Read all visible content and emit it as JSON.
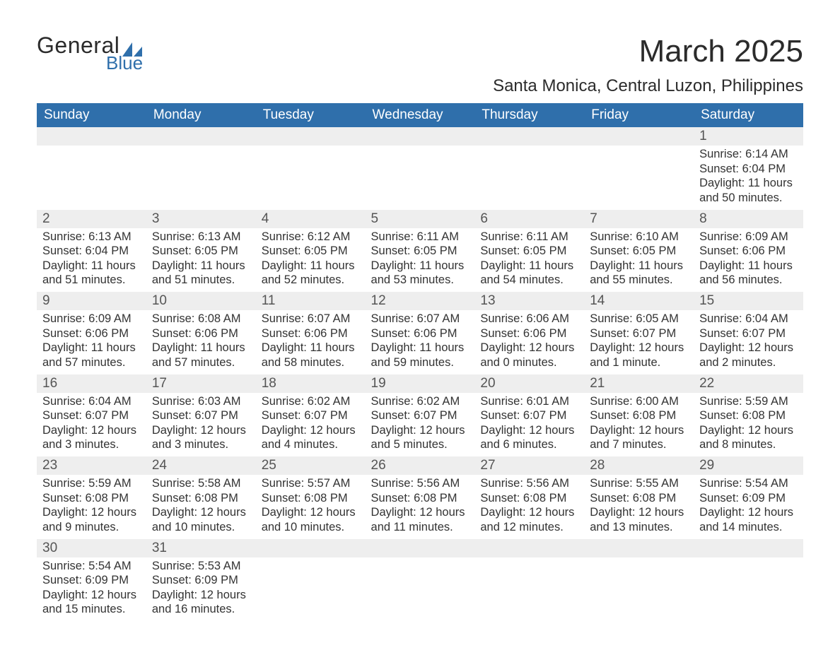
{
  "brand": {
    "word1": "General",
    "word2": "Blue",
    "accent_color": "#2f6fab",
    "text_color": "#2b2b2b"
  },
  "title": {
    "month": "March 2025",
    "location": "Santa Monica, Central Luzon, Philippines"
  },
  "style": {
    "header_bg": "#2f6fab",
    "header_fg": "#ffffff",
    "row_divider": "#2f6fab",
    "daynum_bg": "#eeeeee",
    "body_fg": "#333333",
    "title_fontsize": 44,
    "location_fontsize": 24,
    "header_fontsize": 19,
    "daynum_fontsize": 19,
    "detail_fontsize": 16.5
  },
  "columns": [
    "Sunday",
    "Monday",
    "Tuesday",
    "Wednesday",
    "Thursday",
    "Friday",
    "Saturday"
  ],
  "weeks": [
    [
      null,
      null,
      null,
      null,
      null,
      null,
      {
        "n": "1",
        "sr": "Sunrise: 6:14 AM",
        "ss": "Sunset: 6:04 PM",
        "d1": "Daylight: 11 hours",
        "d2": "and 50 minutes."
      }
    ],
    [
      {
        "n": "2",
        "sr": "Sunrise: 6:13 AM",
        "ss": "Sunset: 6:04 PM",
        "d1": "Daylight: 11 hours",
        "d2": "and 51 minutes."
      },
      {
        "n": "3",
        "sr": "Sunrise: 6:13 AM",
        "ss": "Sunset: 6:05 PM",
        "d1": "Daylight: 11 hours",
        "d2": "and 51 minutes."
      },
      {
        "n": "4",
        "sr": "Sunrise: 6:12 AM",
        "ss": "Sunset: 6:05 PM",
        "d1": "Daylight: 11 hours",
        "d2": "and 52 minutes."
      },
      {
        "n": "5",
        "sr": "Sunrise: 6:11 AM",
        "ss": "Sunset: 6:05 PM",
        "d1": "Daylight: 11 hours",
        "d2": "and 53 minutes."
      },
      {
        "n": "6",
        "sr": "Sunrise: 6:11 AM",
        "ss": "Sunset: 6:05 PM",
        "d1": "Daylight: 11 hours",
        "d2": "and 54 minutes."
      },
      {
        "n": "7",
        "sr": "Sunrise: 6:10 AM",
        "ss": "Sunset: 6:05 PM",
        "d1": "Daylight: 11 hours",
        "d2": "and 55 minutes."
      },
      {
        "n": "8",
        "sr": "Sunrise: 6:09 AM",
        "ss": "Sunset: 6:06 PM",
        "d1": "Daylight: 11 hours",
        "d2": "and 56 minutes."
      }
    ],
    [
      {
        "n": "9",
        "sr": "Sunrise: 6:09 AM",
        "ss": "Sunset: 6:06 PM",
        "d1": "Daylight: 11 hours",
        "d2": "and 57 minutes."
      },
      {
        "n": "10",
        "sr": "Sunrise: 6:08 AM",
        "ss": "Sunset: 6:06 PM",
        "d1": "Daylight: 11 hours",
        "d2": "and 57 minutes."
      },
      {
        "n": "11",
        "sr": "Sunrise: 6:07 AM",
        "ss": "Sunset: 6:06 PM",
        "d1": "Daylight: 11 hours",
        "d2": "and 58 minutes."
      },
      {
        "n": "12",
        "sr": "Sunrise: 6:07 AM",
        "ss": "Sunset: 6:06 PM",
        "d1": "Daylight: 11 hours",
        "d2": "and 59 minutes."
      },
      {
        "n": "13",
        "sr": "Sunrise: 6:06 AM",
        "ss": "Sunset: 6:06 PM",
        "d1": "Daylight: 12 hours",
        "d2": "and 0 minutes."
      },
      {
        "n": "14",
        "sr": "Sunrise: 6:05 AM",
        "ss": "Sunset: 6:07 PM",
        "d1": "Daylight: 12 hours",
        "d2": "and 1 minute."
      },
      {
        "n": "15",
        "sr": "Sunrise: 6:04 AM",
        "ss": "Sunset: 6:07 PM",
        "d1": "Daylight: 12 hours",
        "d2": "and 2 minutes."
      }
    ],
    [
      {
        "n": "16",
        "sr": "Sunrise: 6:04 AM",
        "ss": "Sunset: 6:07 PM",
        "d1": "Daylight: 12 hours",
        "d2": "and 3 minutes."
      },
      {
        "n": "17",
        "sr": "Sunrise: 6:03 AM",
        "ss": "Sunset: 6:07 PM",
        "d1": "Daylight: 12 hours",
        "d2": "and 3 minutes."
      },
      {
        "n": "18",
        "sr": "Sunrise: 6:02 AM",
        "ss": "Sunset: 6:07 PM",
        "d1": "Daylight: 12 hours",
        "d2": "and 4 minutes."
      },
      {
        "n": "19",
        "sr": "Sunrise: 6:02 AM",
        "ss": "Sunset: 6:07 PM",
        "d1": "Daylight: 12 hours",
        "d2": "and 5 minutes."
      },
      {
        "n": "20",
        "sr": "Sunrise: 6:01 AM",
        "ss": "Sunset: 6:07 PM",
        "d1": "Daylight: 12 hours",
        "d2": "and 6 minutes."
      },
      {
        "n": "21",
        "sr": "Sunrise: 6:00 AM",
        "ss": "Sunset: 6:08 PM",
        "d1": "Daylight: 12 hours",
        "d2": "and 7 minutes."
      },
      {
        "n": "22",
        "sr": "Sunrise: 5:59 AM",
        "ss": "Sunset: 6:08 PM",
        "d1": "Daylight: 12 hours",
        "d2": "and 8 minutes."
      }
    ],
    [
      {
        "n": "23",
        "sr": "Sunrise: 5:59 AM",
        "ss": "Sunset: 6:08 PM",
        "d1": "Daylight: 12 hours",
        "d2": "and 9 minutes."
      },
      {
        "n": "24",
        "sr": "Sunrise: 5:58 AM",
        "ss": "Sunset: 6:08 PM",
        "d1": "Daylight: 12 hours",
        "d2": "and 10 minutes."
      },
      {
        "n": "25",
        "sr": "Sunrise: 5:57 AM",
        "ss": "Sunset: 6:08 PM",
        "d1": "Daylight: 12 hours",
        "d2": "and 10 minutes."
      },
      {
        "n": "26",
        "sr": "Sunrise: 5:56 AM",
        "ss": "Sunset: 6:08 PM",
        "d1": "Daylight: 12 hours",
        "d2": "and 11 minutes."
      },
      {
        "n": "27",
        "sr": "Sunrise: 5:56 AM",
        "ss": "Sunset: 6:08 PM",
        "d1": "Daylight: 12 hours",
        "d2": "and 12 minutes."
      },
      {
        "n": "28",
        "sr": "Sunrise: 5:55 AM",
        "ss": "Sunset: 6:08 PM",
        "d1": "Daylight: 12 hours",
        "d2": "and 13 minutes."
      },
      {
        "n": "29",
        "sr": "Sunrise: 5:54 AM",
        "ss": "Sunset: 6:09 PM",
        "d1": "Daylight: 12 hours",
        "d2": "and 14 minutes."
      }
    ],
    [
      {
        "n": "30",
        "sr": "Sunrise: 5:54 AM",
        "ss": "Sunset: 6:09 PM",
        "d1": "Daylight: 12 hours",
        "d2": "and 15 minutes."
      },
      {
        "n": "31",
        "sr": "Sunrise: 5:53 AM",
        "ss": "Sunset: 6:09 PM",
        "d1": "Daylight: 12 hours",
        "d2": "and 16 minutes."
      },
      null,
      null,
      null,
      null,
      null
    ]
  ]
}
